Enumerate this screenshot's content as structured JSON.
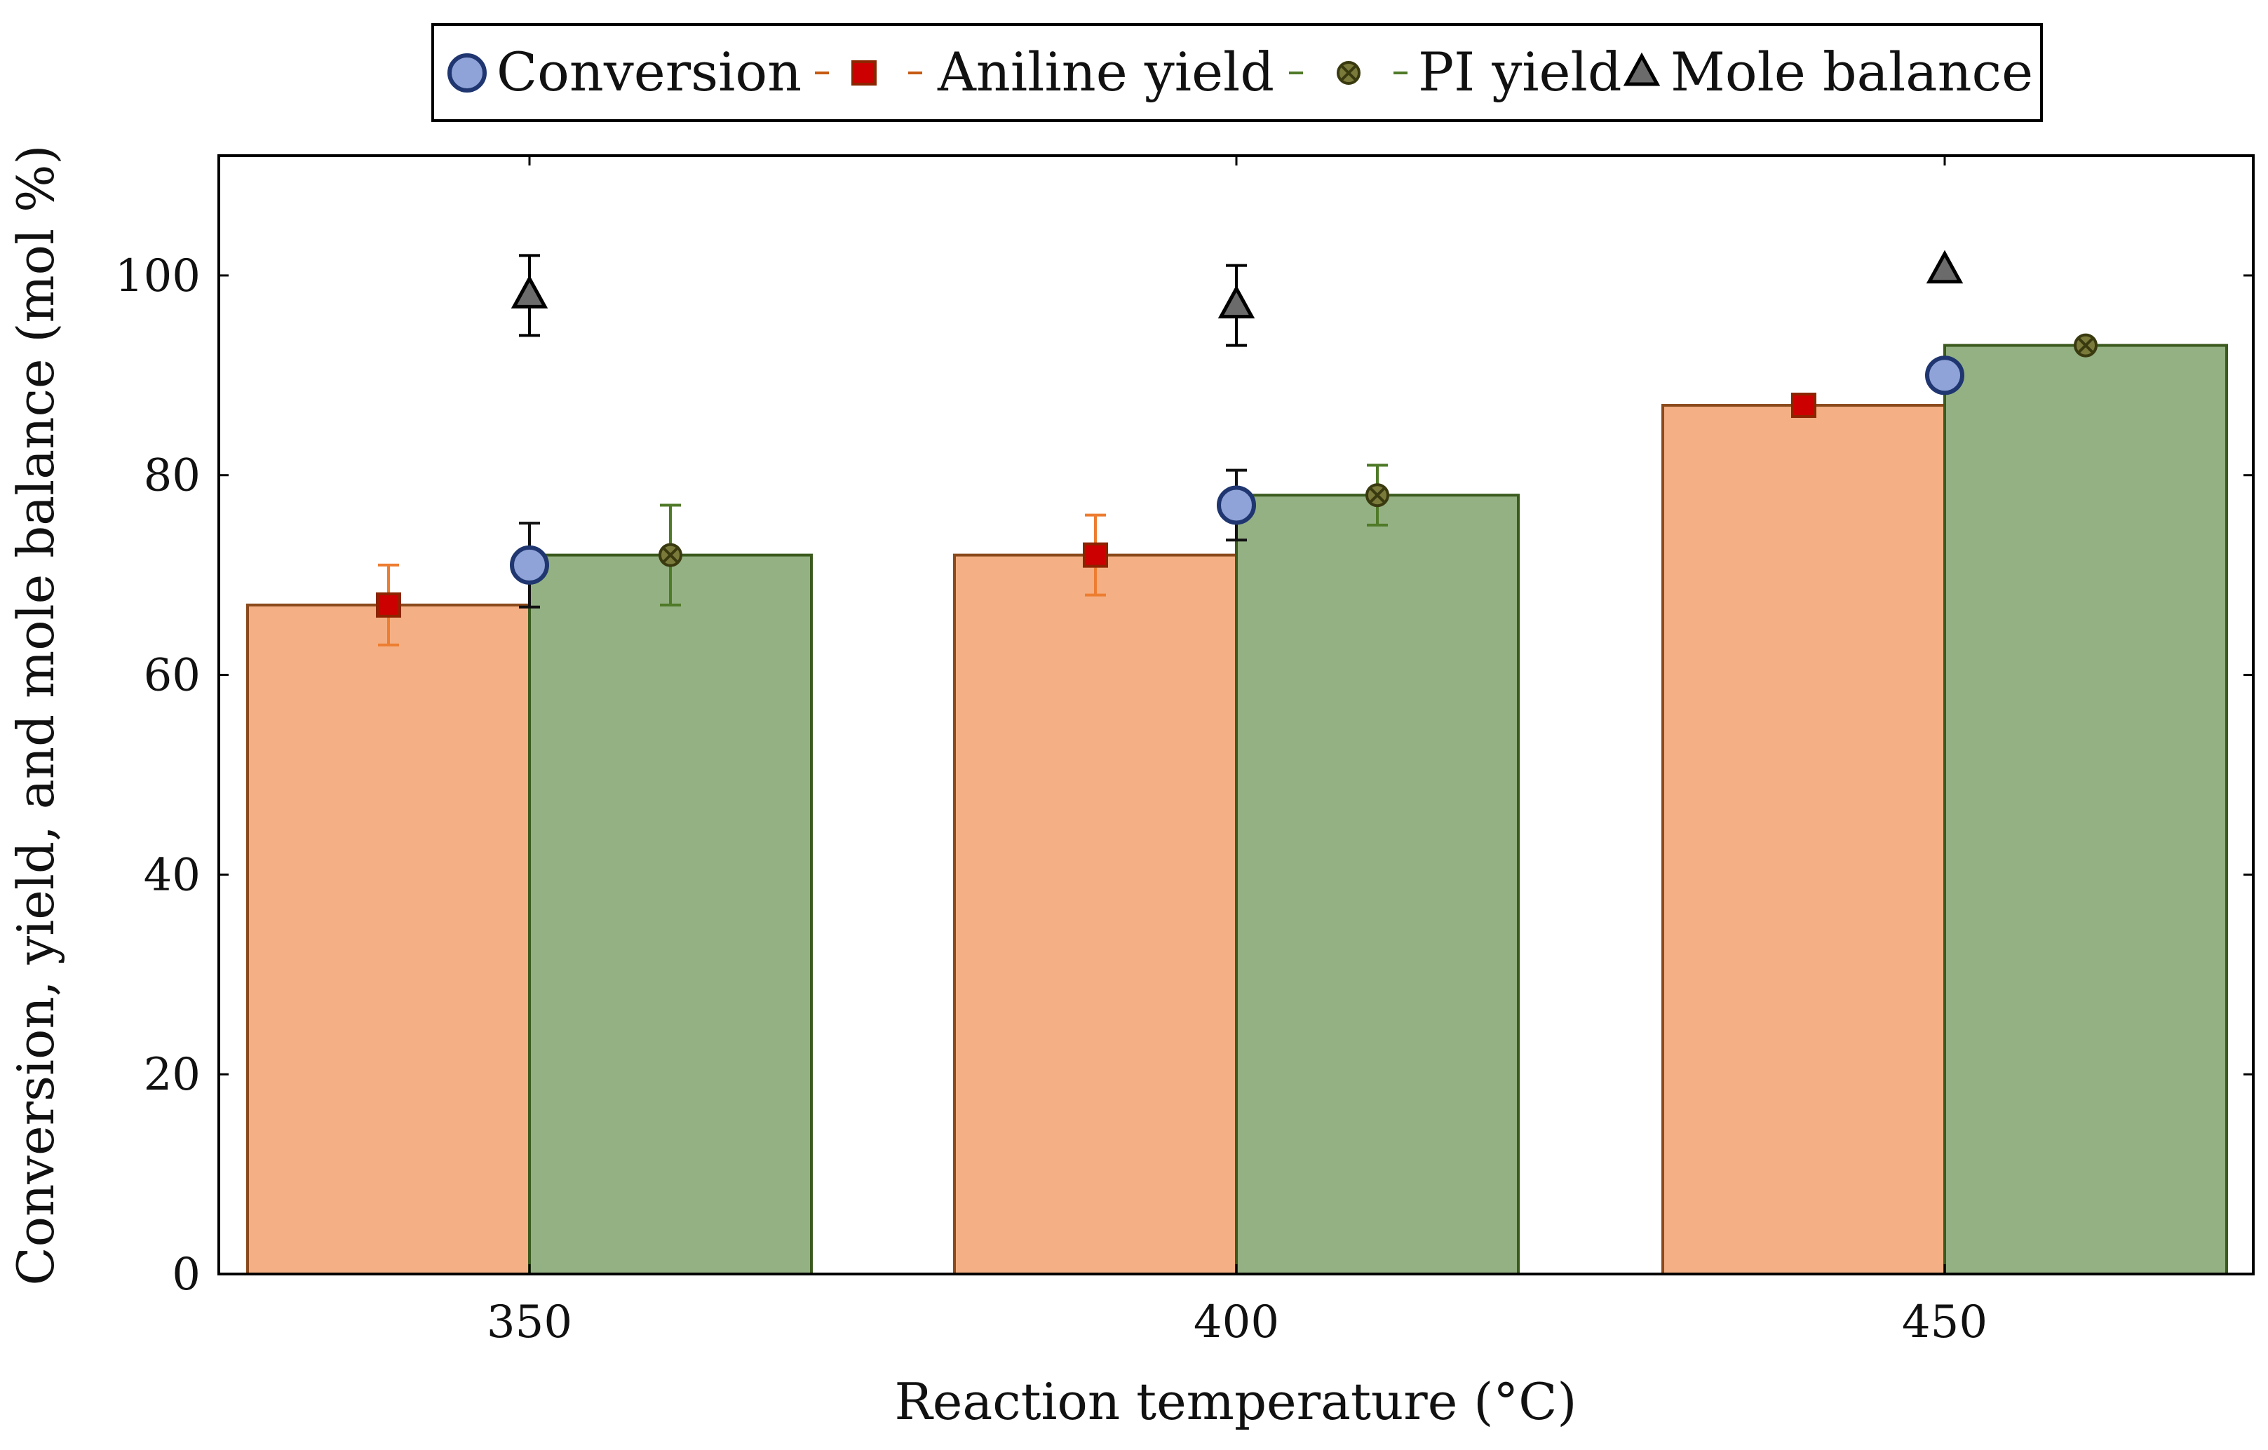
{
  "chart_data": {
    "type": "bar",
    "categories": [
      "350",
      "400",
      "450"
    ],
    "xlabel": "Reaction temperature (°C)",
    "ylabel": "Conversion, yield, and mole balance (mol %)",
    "ylim": [
      0,
      112
    ],
    "yticks": [
      0,
      20,
      40,
      60,
      80,
      100
    ],
    "grid": false,
    "legend_position": "top-center",
    "series": [
      {
        "name": "Aniline yield",
        "kind": "bar",
        "values": [
          67,
          72,
          87
        ],
        "errors": [
          4,
          4,
          0
        ],
        "fill": "#f4b084",
        "stroke": "#8b4a1c",
        "marker": "square",
        "marker_fill": "#cc0000",
        "marker_stroke": "#8b2500",
        "error_color": "#ed7d31"
      },
      {
        "name": "PI yield",
        "kind": "bar",
        "values": [
          72,
          78,
          93
        ],
        "errors": [
          5,
          3,
          0
        ],
        "fill": "#94b183",
        "stroke": "#3a5a1e",
        "marker": "circle-x",
        "marker_fill": "#7a7a3a",
        "marker_stroke": "#3a3a10",
        "error_color": "#4f7a28"
      },
      {
        "name": "Conversion",
        "kind": "marker",
        "values": [
          71,
          77,
          90
        ],
        "errors": [
          4.2,
          3.5,
          0
        ],
        "marker": "circle",
        "marker_fill": "#8fa3d8",
        "marker_stroke": "#1f3670",
        "error_color": "#111111"
      },
      {
        "name": "Mole balance",
        "kind": "marker",
        "values": [
          98,
          97,
          100.5
        ],
        "errors": [
          4,
          4,
          0
        ],
        "marker": "triangle",
        "marker_fill": "#6b6b6b",
        "marker_stroke": "#000000",
        "error_color": "#000000"
      }
    ],
    "legend_order": [
      "Conversion",
      "Aniline yield",
      "PI yield",
      "Mole balance"
    ]
  }
}
